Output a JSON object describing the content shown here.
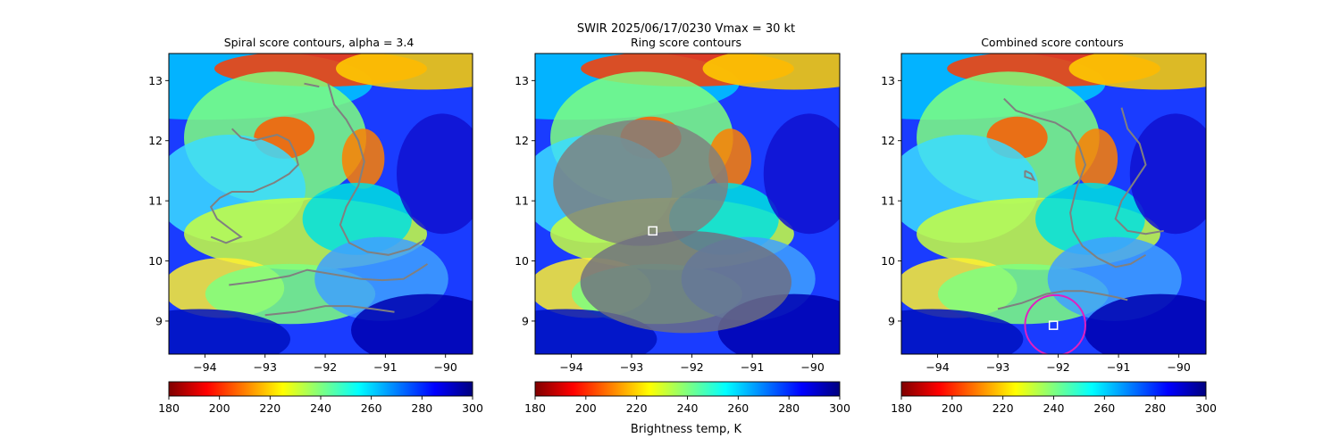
{
  "suptitle_line1": "SWIR  2025/06/17/0230    Vmax = 30 kt",
  "colorbar_label": "Brightness temp, K",
  "colormap": [
    "#7f0000",
    "#ff0000",
    "#ff7f00",
    "#ffff00",
    "#7fff7f",
    "#00ffff",
    "#007fff",
    "#0000ff",
    "#00007f"
  ],
  "colors": {
    "contour": "#808080",
    "marker": "#ffffff",
    "circle": "#e020c0"
  },
  "chart_data": [
    {
      "type": "heatmap",
      "title": "Spiral score contours, alpha =  3.4",
      "xlim": [
        -94.6,
        -89.55
      ],
      "ylim": [
        8.45,
        13.45
      ],
      "xticks": [
        -94,
        -93,
        -92,
        -91,
        -90
      ],
      "xtick_labels": [
        "−94",
        "−93",
        "−92",
        "−91",
        "−90"
      ],
      "yticks": [
        9,
        10,
        11,
        12,
        13
      ],
      "ytick_labels": [
        "9",
        "10",
        "11",
        "12",
        "13"
      ],
      "colorbar": {
        "range": [
          180,
          300
        ],
        "ticks": [
          180,
          200,
          220,
          240,
          260,
          280,
          300
        ],
        "label": ""
      },
      "contours": [
        [
          [
            -93.55,
            12.2
          ],
          [
            -93.4,
            12.05
          ],
          [
            -93.2,
            12.0
          ],
          [
            -93.0,
            12.05
          ],
          [
            -92.8,
            12.1
          ],
          [
            -92.6,
            12.0
          ],
          [
            -92.5,
            11.8
          ],
          [
            -92.45,
            11.6
          ],
          [
            -92.6,
            11.45
          ],
          [
            -92.85,
            11.3
          ],
          [
            -93.2,
            11.15
          ],
          [
            -93.55,
            11.15
          ],
          [
            -93.75,
            11.05
          ],
          [
            -93.9,
            10.9
          ],
          [
            -93.8,
            10.7
          ],
          [
            -93.6,
            10.55
          ],
          [
            -93.4,
            10.4
          ],
          [
            -93.65,
            10.3
          ],
          [
            -93.9,
            10.4
          ]
        ],
        [
          [
            -92.35,
            12.95
          ],
          [
            -92.1,
            12.9
          ]
        ],
        [
          [
            -91.95,
            12.95
          ],
          [
            -91.85,
            12.6
          ],
          [
            -91.65,
            12.35
          ],
          [
            -91.45,
            12.0
          ],
          [
            -91.35,
            11.65
          ],
          [
            -91.45,
            11.25
          ],
          [
            -91.65,
            10.9
          ],
          [
            -91.75,
            10.6
          ],
          [
            -91.6,
            10.3
          ],
          [
            -91.3,
            10.15
          ],
          [
            -90.95,
            10.1
          ],
          [
            -90.6,
            10.2
          ],
          [
            -90.35,
            10.35
          ]
        ],
        [
          [
            -93.6,
            9.6
          ],
          [
            -93.2,
            9.65
          ],
          [
            -92.9,
            9.7
          ],
          [
            -92.6,
            9.75
          ],
          [
            -92.3,
            9.85
          ],
          [
            -92.0,
            9.8
          ],
          [
            -91.7,
            9.75
          ],
          [
            -91.4,
            9.7
          ],
          [
            -91.05,
            9.68
          ],
          [
            -90.7,
            9.7
          ],
          [
            -90.45,
            9.85
          ],
          [
            -90.3,
            9.95
          ]
        ],
        [
          [
            -93.0,
            9.1
          ],
          [
            -92.5,
            9.15
          ],
          [
            -92.0,
            9.25
          ],
          [
            -91.6,
            9.25
          ],
          [
            -91.2,
            9.2
          ],
          [
            -90.85,
            9.15
          ]
        ]
      ],
      "markers": []
    },
    {
      "type": "heatmap",
      "title": "Ring score contours",
      "xlim": [
        -94.6,
        -89.55
      ],
      "ylim": [
        8.45,
        13.45
      ],
      "xticks": [
        -94,
        -93,
        -92,
        -91,
        -90
      ],
      "xtick_labels": [
        "−94",
        "−93",
        "−92",
        "−91",
        "−90"
      ],
      "yticks": [
        9,
        10,
        11,
        12,
        13
      ],
      "ytick_labels": [
        "9",
        "10",
        "11",
        "12",
        "13"
      ],
      "colorbar": {
        "range": [
          180,
          300
        ],
        "ticks": [
          180,
          200,
          220,
          240,
          260,
          280,
          300
        ],
        "label": "Brightness temp, K"
      },
      "ring_regions": [
        {
          "cx": -92.85,
          "cy": 11.3,
          "rx": 1.45,
          "ry": 1.05,
          "fill": "#7f7f7f"
        },
        {
          "cx": -92.1,
          "cy": 9.65,
          "rx": 1.75,
          "ry": 0.85,
          "fill": "#6f6f80"
        }
      ],
      "markers": [
        {
          "shape": "square",
          "lon": -92.65,
          "lat": 10.5
        }
      ]
    },
    {
      "type": "heatmap",
      "title": "Combined score contours",
      "xlim": [
        -94.6,
        -89.55
      ],
      "ylim": [
        8.45,
        13.45
      ],
      "xticks": [
        -94,
        -93,
        -92,
        -91,
        -90
      ],
      "xtick_labels": [
        "−94",
        "−93",
        "−92",
        "−91",
        "−90"
      ],
      "yticks": [
        9,
        10,
        11,
        12,
        13
      ],
      "ytick_labels": [
        "9",
        "10",
        "11",
        "12",
        "13"
      ],
      "colorbar": {
        "range": [
          180,
          300
        ],
        "ticks": [
          180,
          200,
          220,
          240,
          260,
          280,
          300
        ],
        "label": ""
      },
      "contours": [
        [
          [
            -92.9,
            12.7
          ],
          [
            -92.7,
            12.5
          ],
          [
            -92.4,
            12.4
          ],
          [
            -92.05,
            12.3
          ],
          [
            -91.8,
            12.15
          ],
          [
            -91.65,
            11.9
          ],
          [
            -91.55,
            11.6
          ],
          [
            -91.7,
            11.2
          ],
          [
            -91.8,
            10.8
          ],
          [
            -91.75,
            10.5
          ],
          [
            -91.6,
            10.25
          ],
          [
            -91.35,
            10.05
          ],
          [
            -91.05,
            9.9
          ],
          [
            -90.8,
            9.95
          ],
          [
            -90.55,
            10.1
          ]
        ],
        [
          [
            -92.55,
            11.5
          ],
          [
            -92.45,
            11.45
          ],
          [
            -92.4,
            11.35
          ],
          [
            -92.55,
            11.4
          ],
          [
            -92.55,
            11.5
          ]
        ],
        [
          [
            -90.95,
            12.55
          ],
          [
            -90.85,
            12.2
          ],
          [
            -90.65,
            11.95
          ],
          [
            -90.55,
            11.6
          ],
          [
            -90.75,
            11.3
          ],
          [
            -90.95,
            11.0
          ],
          [
            -91.05,
            10.7
          ],
          [
            -90.85,
            10.5
          ],
          [
            -90.55,
            10.45
          ],
          [
            -90.25,
            10.5
          ]
        ],
        [
          [
            -93.0,
            9.2
          ],
          [
            -92.6,
            9.3
          ],
          [
            -92.2,
            9.45
          ],
          [
            -91.9,
            9.5
          ],
          [
            -91.6,
            9.5
          ],
          [
            -91.3,
            9.45
          ],
          [
            -91.05,
            9.4
          ],
          [
            -90.85,
            9.35
          ]
        ]
      ],
      "markers": [
        {
          "shape": "square",
          "lon": -92.08,
          "lat": 8.93
        },
        {
          "shape": "circle",
          "lon": -92.05,
          "lat": 8.93,
          "radius": 0.5
        }
      ]
    }
  ]
}
